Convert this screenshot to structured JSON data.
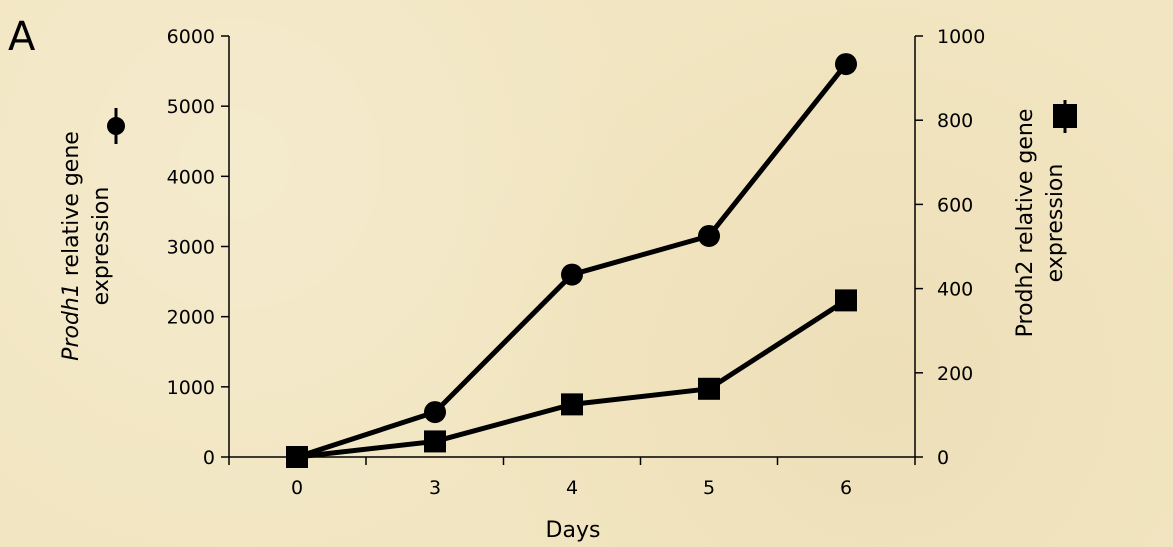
{
  "panel_label": "A",
  "chart_data": {
    "type": "line",
    "x": [
      0,
      3,
      4,
      5,
      6
    ],
    "categories": [
      "0",
      "3",
      "4",
      "5",
      "6"
    ],
    "xlabel": "Days",
    "series": [
      {
        "name": "Prodh1",
        "axis": "left",
        "marker": "circle",
        "values": [
          0,
          640,
          2600,
          3150,
          5600
        ]
      },
      {
        "name": "Prodh2",
        "axis": "right",
        "marker": "square",
        "values": [
          0,
          37,
          125,
          162,
          372
        ]
      }
    ],
    "ylabel_left": {
      "italic_part": "Prodh1",
      "line1_rest": " relative gene",
      "line2": "expression"
    },
    "ylabel_right": {
      "line1": "Prodh2 relative gene",
      "line2": "expression"
    },
    "ylim_left": [
      0,
      6000
    ],
    "yticks_left": [
      0,
      1000,
      2000,
      3000,
      4000,
      5000,
      6000
    ],
    "ylim_right": [
      0,
      1000
    ],
    "yticks_right": [
      0,
      200,
      400,
      600,
      800,
      1000
    ],
    "grid": false,
    "line_color": "#000000",
    "background_color": "#f2e6c2"
  }
}
